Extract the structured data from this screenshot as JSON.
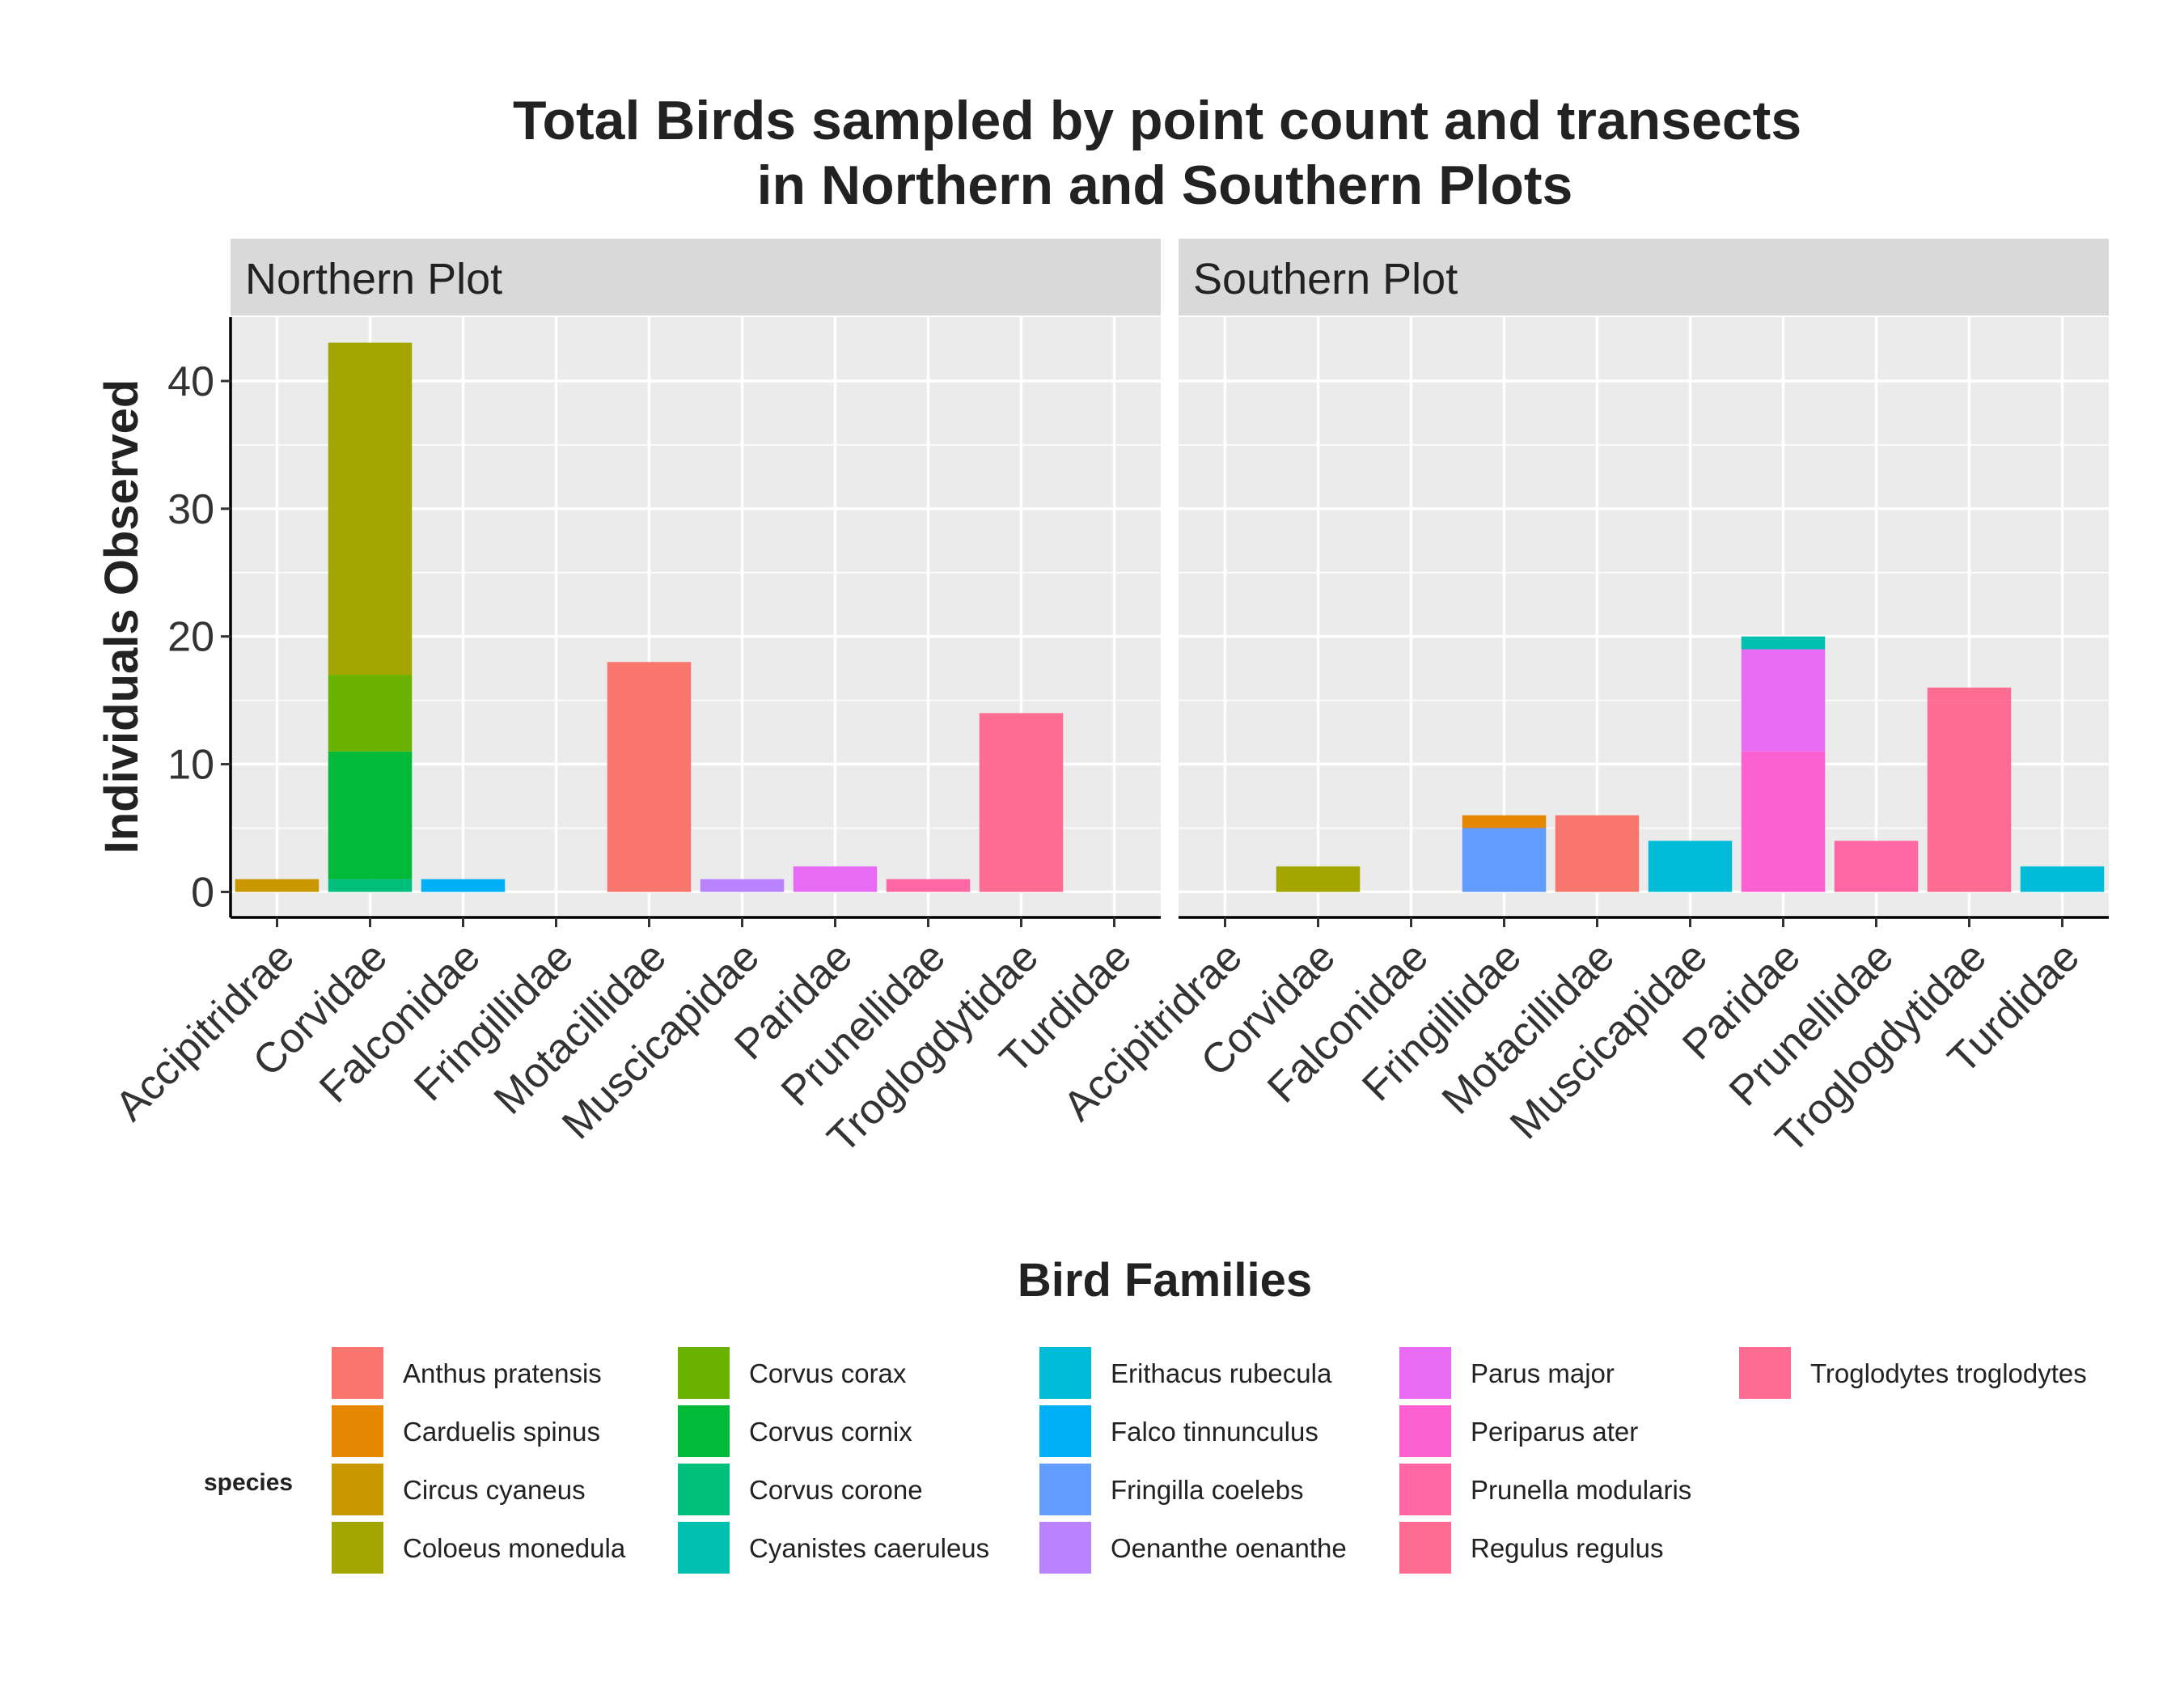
{
  "chart_data": {
    "type": "bar",
    "stacked": true,
    "title": "Total Birds sampled by point count and transects\nin Northern and Southern Plots",
    "xlabel": "Bird Families",
    "ylabel": "Individuals Observed",
    "ylim": [
      -2,
      45
    ],
    "yticks": [
      0,
      10,
      20,
      30,
      40
    ],
    "grid": true,
    "legend_title": "species",
    "legend_position": "bottom",
    "categories": [
      "Accipitridrae",
      "Corvidae",
      "Falconidae",
      "Fringillidae",
      "Motacillidae",
      "Muscicapidae",
      "Paridae",
      "Prunellidae",
      "Troglogdytidae",
      "Turdidae"
    ],
    "species": [
      {
        "name": "Anthus pratensis",
        "color": "#F8766D"
      },
      {
        "name": "Carduelis spinus",
        "color": "#E58700"
      },
      {
        "name": "Circus cyaneus",
        "color": "#C99800"
      },
      {
        "name": "Coloeus monedula",
        "color": "#A3A500"
      },
      {
        "name": "Corvus corax",
        "color": "#6BB100"
      },
      {
        "name": "Corvus cornix",
        "color": "#00BA38"
      },
      {
        "name": "Corvus corone",
        "color": "#00BF7D"
      },
      {
        "name": "Cyanistes caeruleus",
        "color": "#00C0AF"
      },
      {
        "name": "Erithacus rubecula",
        "color": "#00BCD8"
      },
      {
        "name": "Falco tinnunculus",
        "color": "#00B0F6"
      },
      {
        "name": "Fringilla coelebs",
        "color": "#619CFF"
      },
      {
        "name": "Oenanthe oenanthe",
        "color": "#B983FF"
      },
      {
        "name": "Parus major",
        "color": "#E76BF3"
      },
      {
        "name": "Periparus ater",
        "color": "#FD61D1"
      },
      {
        "name": "Prunella modularis",
        "color": "#FF67A4"
      },
      {
        "name": "Regulus regulus",
        "color": "#FF6C91"
      },
      {
        "name": "Troglodytes troglodytes",
        "color": "#FF6C91"
      }
    ],
    "panels": [
      {
        "name": "Northern Plot",
        "stacks": [
          {
            "family": "Accipitridrae",
            "segments": [
              {
                "species": "Circus cyaneus",
                "value": 1
              }
            ]
          },
          {
            "family": "Corvidae",
            "segments": [
              {
                "species": "Corvus corone",
                "value": 1
              },
              {
                "species": "Corvus cornix",
                "value": 10
              },
              {
                "species": "Corvus corax",
                "value": 6
              },
              {
                "species": "Coloeus monedula",
                "value": 26
              }
            ]
          },
          {
            "family": "Falconidae",
            "segments": [
              {
                "species": "Falco tinnunculus",
                "value": 1
              }
            ]
          },
          {
            "family": "Motacillidae",
            "segments": [
              {
                "species": "Anthus pratensis",
                "value": 18
              }
            ]
          },
          {
            "family": "Muscicapidae",
            "segments": [
              {
                "species": "Oenanthe oenanthe",
                "value": 1
              }
            ]
          },
          {
            "family": "Paridae",
            "segments": [
              {
                "species": "Parus major",
                "value": 2
              }
            ]
          },
          {
            "family": "Prunellidae",
            "segments": [
              {
                "species": "Prunella modularis",
                "value": 1
              }
            ]
          },
          {
            "family": "Troglogdytidae",
            "segments": [
              {
                "species": "Troglodytes troglodytes",
                "value": 14
              }
            ]
          }
        ]
      },
      {
        "name": "Southern Plot",
        "stacks": [
          {
            "family": "Corvidae",
            "segments": [
              {
                "species": "Coloeus monedula",
                "value": 2
              }
            ]
          },
          {
            "family": "Fringillidae",
            "segments": [
              {
                "species": "Fringilla coelebs",
                "value": 5
              },
              {
                "species": "Carduelis spinus",
                "value": 1
              }
            ]
          },
          {
            "family": "Motacillidae",
            "segments": [
              {
                "species": "Anthus pratensis",
                "value": 6
              }
            ]
          },
          {
            "family": "Muscicapidae",
            "segments": [
              {
                "species": "Erithacus rubecula",
                "value": 4
              }
            ]
          },
          {
            "family": "Paridae",
            "segments": [
              {
                "species": "Periparus ater",
                "value": 11
              },
              {
                "species": "Parus major",
                "value": 8
              },
              {
                "species": "Cyanistes caeruleus",
                "value": 1
              }
            ]
          },
          {
            "family": "Prunellidae",
            "segments": [
              {
                "species": "Prunella modularis",
                "value": 4
              }
            ]
          },
          {
            "family": "Troglogdytidae",
            "segments": [
              {
                "species": "Troglodytes troglodytes",
                "value": 15
              },
              {
                "species": "Regulus regulus",
                "value": 1
              }
            ]
          },
          {
            "family": "Turdidae",
            "segments": [
              {
                "species": "Erithacus rubecula",
                "value": 2
              }
            ]
          }
        ]
      }
    ]
  }
}
